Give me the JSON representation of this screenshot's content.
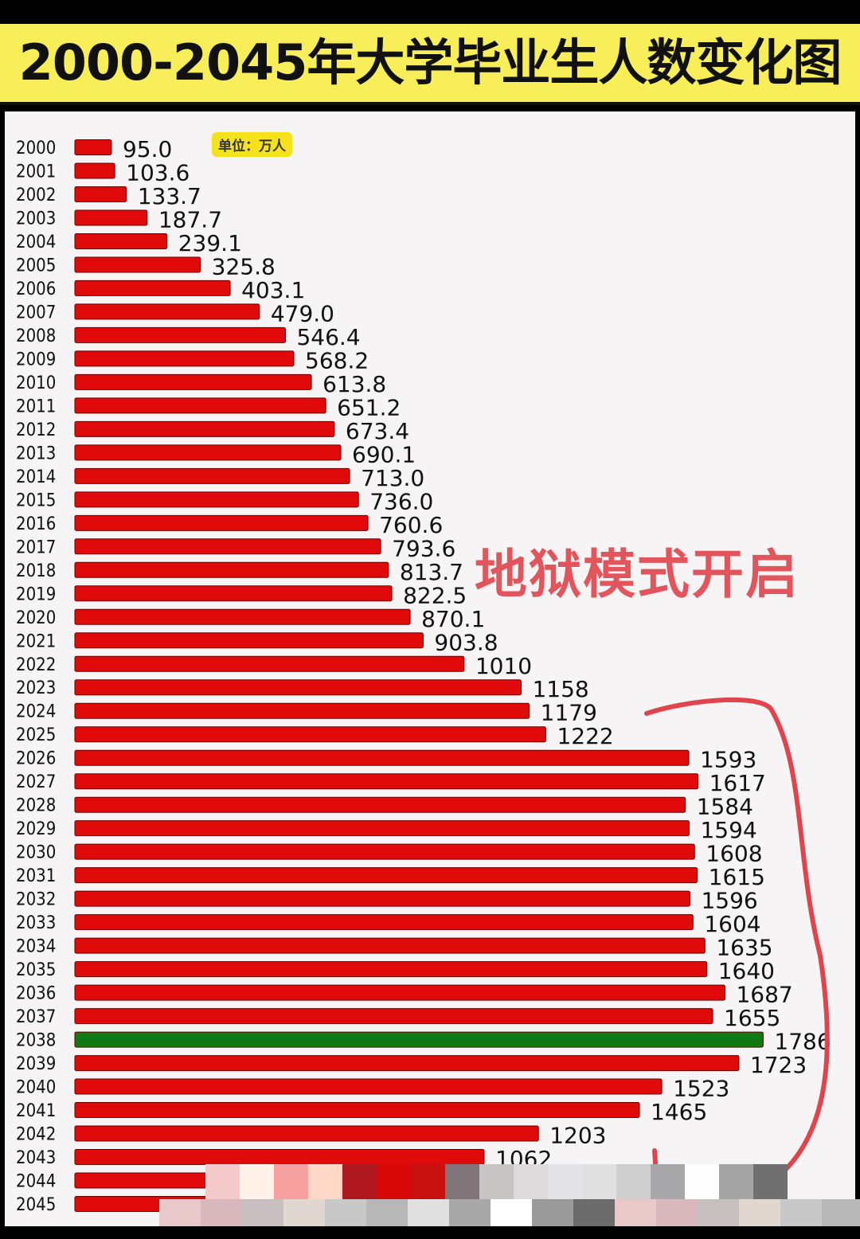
{
  "chart_data": {
    "type": "bar",
    "orientation": "horizontal",
    "title": "2000-2045年大学毕业生人数变化图",
    "unit_label": "单位：万人",
    "annotation": "地狱模式开启",
    "categories": [
      "2000",
      "2001",
      "2002",
      "2003",
      "2004",
      "2005",
      "2006",
      "2007",
      "2008",
      "2009",
      "2010",
      "2011",
      "2012",
      "2013",
      "2014",
      "2015",
      "2016",
      "2017",
      "2018",
      "2019",
      "2020",
      "2021",
      "2022",
      "2023",
      "2024",
      "2025",
      "2026",
      "2027",
      "2028",
      "2029",
      "2030",
      "2031",
      "2032",
      "2033",
      "2034",
      "2035",
      "2036",
      "2037",
      "2038",
      "2039",
      "2040",
      "2041",
      "2042",
      "2043",
      "2044",
      "2045"
    ],
    "values": [
      95.0,
      103.6,
      133.7,
      187.7,
      239.1,
      325.8,
      403.1,
      479.0,
      546.4,
      568.2,
      613.8,
      651.2,
      673.4,
      690.1,
      713.0,
      736.0,
      760.6,
      793.6,
      813.7,
      822.5,
      870.1,
      903.8,
      1010,
      1158,
      1179,
      1222,
      1593,
      1617,
      1584,
      1594,
      1608,
      1615,
      1596,
      1604,
      1635,
      1640,
      1687,
      1655,
      1786,
      1723,
      1523,
      1465,
      1203,
      1062,
      null,
      null
    ],
    "labels": [
      "95.0",
      "103.6",
      "133.7",
      "187.7",
      "239.1",
      "325.8",
      "403.1",
      "479.0",
      "546.4",
      "568.2",
      "613.8",
      "651.2",
      "673.4",
      "690.1",
      "713.0",
      "736.0",
      "760.6",
      "793.6",
      "813.7",
      "822.5",
      "870.1",
      "903.8",
      "1010",
      "1158",
      "1179",
      "1222",
      "1593",
      "1617",
      "1584",
      "1594",
      "1608",
      "1615",
      "1596",
      "1604",
      "1635",
      "1640",
      "1687",
      "1655",
      "1786",
      "1723",
      "1523",
      "1465",
      "1203",
      "1062",
      "",
      ""
    ],
    "highlight_category": "2038",
    "colors": {
      "bar": "#e00a0a",
      "highlight": "#0f7a12",
      "title_bg": "#f7ee5a",
      "annotation": "#e0444c"
    },
    "grid": false,
    "legend": "none"
  }
}
